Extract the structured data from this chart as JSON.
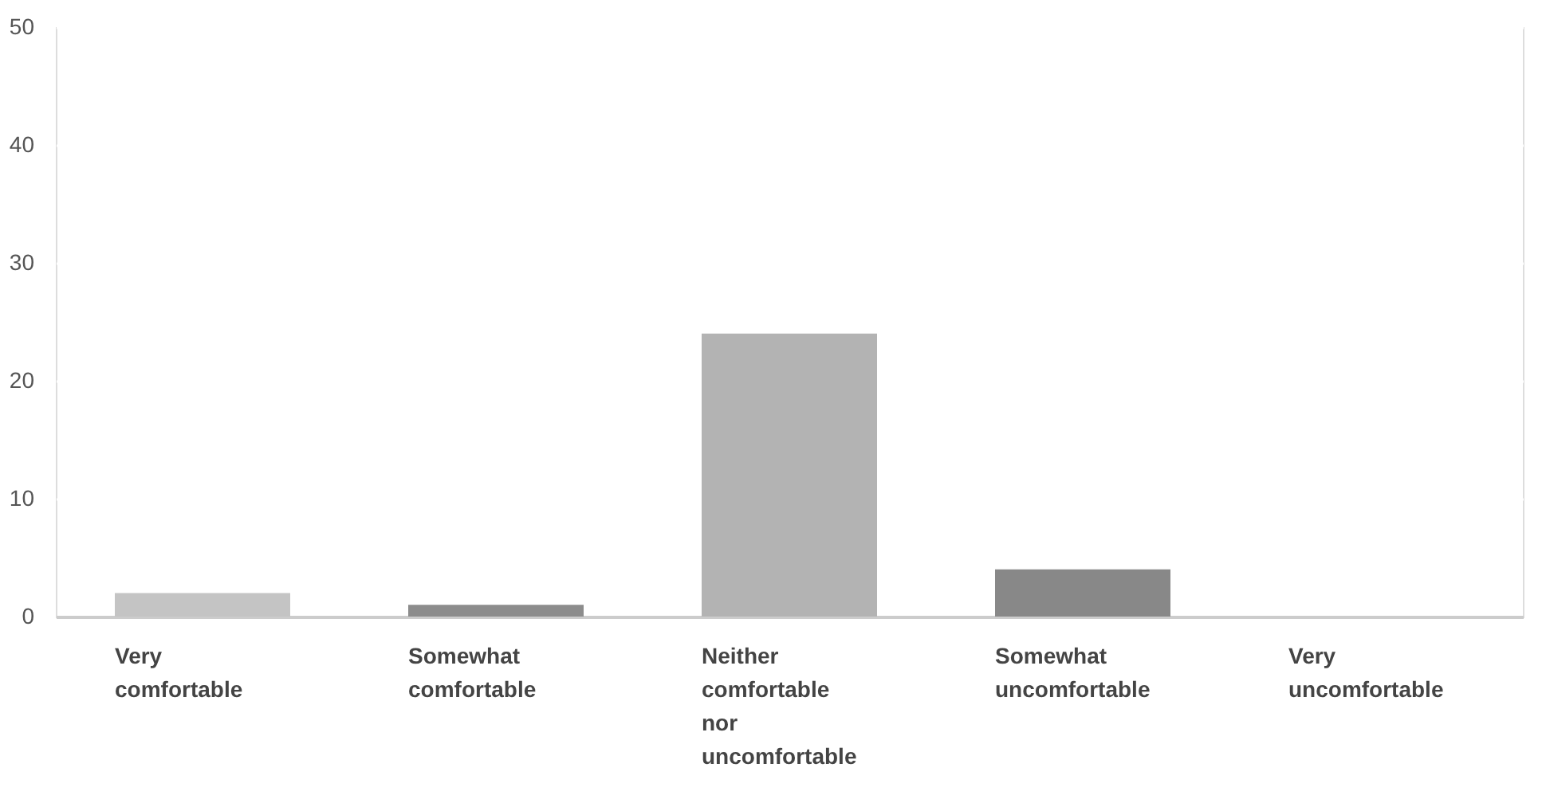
{
  "chart_data": {
    "type": "bar",
    "categories": [
      "Very comfortable",
      "Somewhat comfortable",
      "Neither comfortable nor uncomfortable",
      "Somewhat uncomfortable",
      "Very uncomfortable"
    ],
    "values": [
      2,
      1,
      24,
      4,
      0
    ],
    "colors": [
      "#c4c4c4",
      "#8c8c8c",
      "#b3b3b3",
      "#888888",
      "#b3b3b3"
    ],
    "ylim": [
      0,
      50
    ],
    "yticks": [
      0,
      10,
      20,
      30,
      40,
      50
    ],
    "grid": "y"
  }
}
